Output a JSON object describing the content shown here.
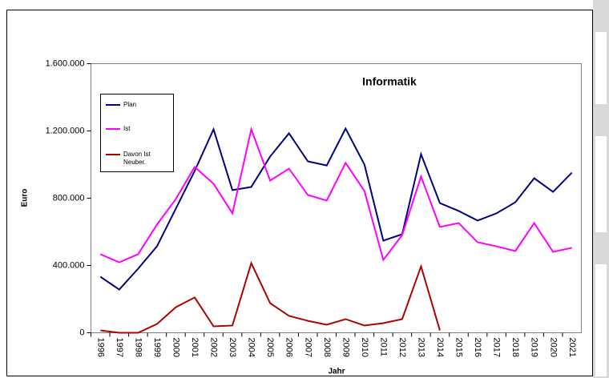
{
  "chart_data": {
    "type": "line",
    "title": "Informatik",
    "x_label": "Jahr",
    "y_label": "Euro",
    "categories": [
      "1996",
      "1997",
      "1998",
      "1999",
      "2000",
      "2001",
      "2002",
      "2003",
      "2004",
      "2005",
      "2006",
      "2007",
      "2008",
      "2009",
      "2010",
      "2011",
      "2012",
      "2013",
      "2014",
      "2015",
      "2016",
      "2017",
      "2018",
      "2019",
      "2020",
      "2021"
    ],
    "series": [
      {
        "name": "Plan",
        "color": "#000080",
        "values": [
          333000,
          257000,
          381000,
          514000,
          738000,
          962000,
          1210000,
          848000,
          867000,
          1048000,
          1186000,
          1019000,
          995000,
          1214000,
          1000000,
          548000,
          586000,
          1062000,
          771000,
          724000,
          667000,
          710000,
          776000,
          919000,
          838000,
          952000
        ]
      },
      {
        "name": "Ist",
        "color": "#ff00ff",
        "values": [
          467000,
          419000,
          467000,
          643000,
          795000,
          986000,
          886000,
          710000,
          1210000,
          905000,
          976000,
          819000,
          786000,
          1010000,
          843000,
          433000,
          581000,
          929000,
          629000,
          652000,
          538000,
          514000,
          486000,
          652000,
          481000,
          505000
        ]
      },
      {
        "name": "Davon Ist Neuber.",
        "color": "#b00000",
        "values": [
          14000,
          0,
          0,
          52000,
          152000,
          210000,
          38000,
          43000,
          414000,
          176000,
          100000,
          71000,
          48000,
          81000,
          43000,
          57000,
          81000,
          395000,
          14000,
          null,
          null,
          null,
          null,
          null,
          null,
          null
        ]
      }
    ],
    "ylim": [
      0,
      1600000
    ],
    "yticks": [
      0,
      {
        "value": 400000,
        "label": "400.000"
      },
      {
        "value": 800000,
        "label": "800.000"
      },
      {
        "value": 1200000,
        "label": "1.200.000"
      },
      {
        "value": 1600000,
        "label": "1.600.000"
      }
    ],
    "grid": false
  }
}
